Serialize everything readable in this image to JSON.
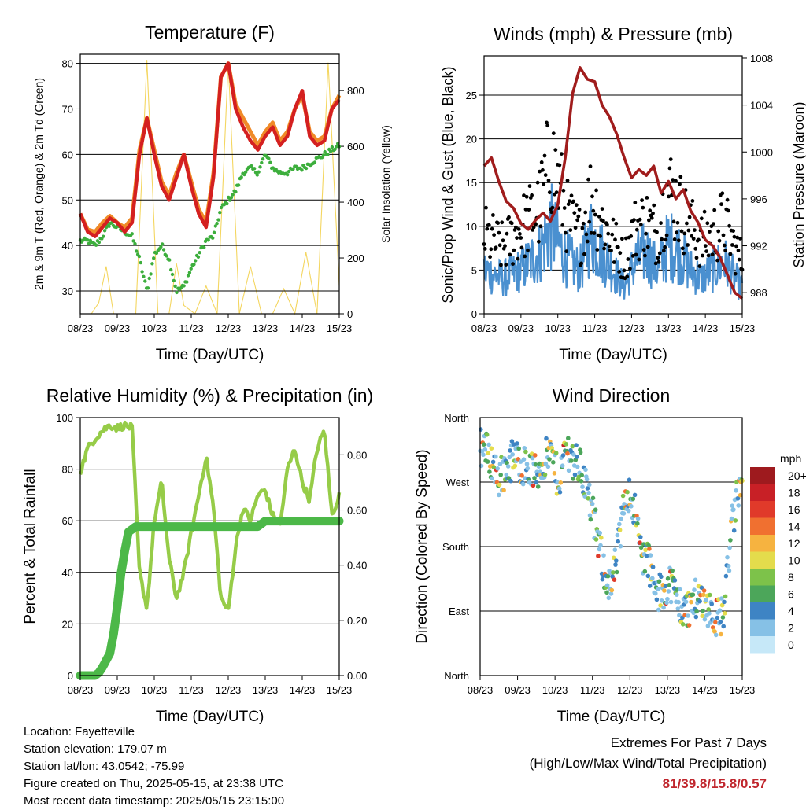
{
  "x_ticks": [
    "08/23",
    "09/23",
    "10/23",
    "11/23",
    "12/23",
    "13/23",
    "14/23",
    "15/23"
  ],
  "x_label": "Time (Day/UTC)",
  "panels": {
    "temperature": {
      "title": "Temperature (F)",
      "y_label": "2m & 9m T (Red, Orange) & 2m Td (Green)",
      "y2_label": "Solar Insolation (Yellow)",
      "y_ticks": [
        "30",
        "40",
        "50",
        "60",
        "70",
        "80"
      ],
      "y2_ticks": [
        "0",
        "200",
        "400",
        "600",
        "800"
      ]
    },
    "winds": {
      "title": "Winds (mph) & Pressure (mb)",
      "y_label": "Sonic/Prop Wind & Gust (Blue, Black)",
      "y2_label": "Station Pressure (Maroon)",
      "y_ticks": [
        "0",
        "5",
        "10",
        "15",
        "20",
        "25"
      ],
      "y2_ticks": [
        "988",
        "992",
        "996",
        "1000",
        "1004",
        "1008"
      ]
    },
    "humidity": {
      "title": "Relative Humidity (%) & Precipitation (in)",
      "y_label": "Percent & Total Rainfall",
      "y_ticks": [
        "0",
        "20",
        "40",
        "60",
        "80",
        "100"
      ],
      "y2_ticks": [
        "0.00",
        "0.20",
        "0.40",
        "0.60",
        "0.80"
      ]
    },
    "direction": {
      "title": "Wind Direction",
      "y_label": "Direction (Colored By Speed)",
      "y_ticks": [
        "North",
        "East",
        "South",
        "West",
        "North"
      ],
      "legend_title": "mph",
      "legend_labels": [
        "0",
        "2",
        "4",
        "6",
        "8",
        "10",
        "12",
        "14",
        "16",
        "18",
        "20+"
      ],
      "legend_colors": [
        "#c6e8f8",
        "#86c1e6",
        "#3e84c4",
        "#4ca65a",
        "#7dc24a",
        "#e4dc4c",
        "#f6b340",
        "#f07030",
        "#e03a2a",
        "#c82026",
        "#9e1a1e"
      ]
    }
  },
  "footer": {
    "location": "Location: Fayetteville",
    "elevation": "Station elevation: 179.07 m",
    "latlon": "Station lat/lon: 43.0542; -75.99",
    "created": "Figure created on Thu, 2025-05-15, at 23:38 UTC",
    "recent": "Most recent data timestamp: 2025/05/15 23:15:00"
  },
  "extremes": {
    "line1": "Extremes For Past 7 Days",
    "line2": "(High/Low/Max Wind/Total Precipitation)",
    "values": "81/39.8/15.8/0.57"
  },
  "colors": {
    "temp_2m": "#d42020",
    "temp_9m": "#f08a28",
    "dewpoint": "#3cae3c",
    "solar": "#f4d660",
    "wind": "#4a90d0",
    "gust": "#000000",
    "pressure": "#a01c1c",
    "humidity": "#96cc48",
    "precip": "#4cb848"
  },
  "chart_data": [
    {
      "type": "line",
      "title": "Temperature (F)",
      "xlabel": "Time (Day/UTC)",
      "ylabel": "2m & 9m T (Red, Orange) & 2m Td (Green)",
      "y2label": "Solar Insolation (Yellow)",
      "xlim": [
        0,
        7
      ],
      "ylim": [
        25,
        82
      ],
      "y2lim": [
        0,
        930
      ],
      "series": [
        {
          "x": [
            0,
            0.2,
            0.4,
            0.6,
            0.8,
            1.0,
            1.2,
            1.4,
            1.6,
            1.8,
            2.0,
            2.2,
            2.4,
            2.6,
            2.8,
            3.0,
            3.2,
            3.4,
            3.6,
            3.8,
            4.0,
            4.2,
            4.4,
            4.6,
            4.8,
            5.0,
            5.2,
            5.4,
            5.6,
            5.8,
            6.0,
            6.2,
            6.4,
            6.6,
            6.8,
            7.0
          ],
          "y": [
            47,
            43,
            42,
            44,
            46,
            45,
            43,
            45,
            60,
            68,
            60,
            53,
            50,
            55,
            60,
            53,
            47,
            44,
            55,
            77,
            80,
            70,
            66,
            63,
            61,
            64,
            66,
            62,
            64,
            70,
            74,
            64,
            62,
            63,
            70,
            72
          ]
        },
        {
          "x": [
            0,
            0.2,
            0.4,
            0.6,
            0.8,
            1.0,
            1.2,
            1.4,
            1.6,
            1.8,
            2.0,
            2.2,
            2.4,
            2.6,
            2.8,
            3.0,
            3.2,
            3.4,
            3.6,
            3.8,
            4.0,
            4.2,
            4.4,
            4.6,
            4.8,
            5.0,
            5.2,
            5.4,
            5.6,
            5.8,
            6.0,
            6.2,
            6.4,
            6.6,
            6.8,
            7.0
          ],
          "y": [
            47,
            43.5,
            43,
            45,
            46.5,
            45,
            44,
            46,
            61,
            68,
            61,
            54,
            51,
            56,
            60,
            54,
            48,
            45,
            56,
            77,
            80,
            71,
            68,
            65,
            62,
            65,
            67,
            63,
            65,
            70,
            73,
            65,
            63,
            64,
            70,
            73
          ]
        },
        {
          "x": [
            0,
            0.2,
            0.4,
            0.6,
            0.8,
            1.0,
            1.2,
            1.4,
            1.6,
            1.8,
            2.0,
            2.2,
            2.4,
            2.6,
            2.8,
            3.0,
            3.2,
            3.4,
            3.6,
            3.8,
            4.0,
            4.2,
            4.4,
            4.6,
            4.8,
            5.0,
            5.2,
            5.4,
            5.6,
            5.8,
            6.0,
            6.2,
            6.4,
            6.6,
            6.8,
            7.0
          ],
          "y": [
            41,
            41,
            40,
            42,
            45,
            44,
            43,
            42,
            37,
            30,
            38,
            40,
            37,
            30,
            31,
            35,
            38,
            41,
            42,
            48,
            50,
            52,
            56,
            57,
            56,
            60,
            57,
            56,
            56,
            57,
            57,
            58,
            59,
            60,
            61,
            62
          ]
        },
        {
          "x": [
            0,
            0.3,
            0.5,
            0.7,
            0.9,
            1.2,
            1.5,
            1.8,
            2.1,
            2.4,
            2.6,
            2.8,
            3.1,
            3.4,
            3.7,
            4.0,
            4.3,
            4.6,
            4.9,
            5.2,
            5.5,
            5.8,
            6.1,
            6.4,
            6.7,
            7.0
          ],
          "y": [
            0,
            0,
            40,
            170,
            0,
            0,
            0,
            910,
            0,
            0,
            180,
            30,
            0,
            100,
            0,
            900,
            0,
            170,
            0,
            0,
            90,
            0,
            220,
            0,
            900,
            100
          ]
        }
      ]
    },
    {
      "type": "scatter",
      "title": "Winds (mph) & Pressure (mb)",
      "xlabel": "Time (Day/UTC)",
      "ylabel": "Sonic/Prop Wind & Gust (Blue, Black)",
      "y2label": "Station Pressure (Maroon)",
      "xlim": [
        0,
        7
      ],
      "ylim": [
        0,
        29.5
      ],
      "y2lim": [
        986.2,
        1008.2
      ],
      "series": [
        {
          "x": [
            0,
            0.5,
            1.0,
            1.5,
            1.8,
            2.0,
            2.3,
            2.6,
            2.9,
            3.2,
            3.5,
            3.8,
            4.1,
            4.4,
            4.7,
            5.0,
            5.3,
            5.6,
            5.9,
            6.2,
            6.5,
            6.8,
            7.0
          ],
          "y": [
            5,
            4,
            5,
            7,
            10,
            8,
            6,
            5,
            9,
            7,
            5,
            3,
            6,
            7,
            5,
            8,
            7,
            5,
            4,
            5,
            6,
            4,
            3
          ]
        },
        {
          "x": [
            0,
            0.5,
            1.0,
            1.5,
            1.8,
            2.0,
            2.3,
            2.6,
            2.9,
            3.2,
            3.5,
            3.8,
            4.1,
            4.4,
            4.7,
            5.0,
            5.3,
            5.6,
            5.9,
            6.2,
            6.5,
            6.8,
            7.0
          ],
          "y": [
            12,
            10,
            13,
            16,
            24,
            20,
            14,
            12,
            18,
            14,
            11,
            8,
            13,
            14,
            12,
            19,
            16,
            13,
            11,
            12,
            14,
            10,
            8
          ]
        },
        {
          "x": [
            0,
            0.2,
            0.4,
            0.6,
            0.8,
            1.0,
            1.2,
            1.4,
            1.6,
            1.8,
            2.0,
            2.2,
            2.4,
            2.6,
            2.8,
            3.0,
            3.2,
            3.4,
            3.6,
            3.8,
            4.0,
            4.2,
            4.4,
            4.6,
            4.8,
            5.0,
            5.2,
            5.4,
            5.6,
            5.8,
            6.0,
            6.2,
            6.4,
            6.6,
            6.8,
            7.0
          ],
          "y": [
            998.8,
            999.5,
            997.5,
            995.8,
            995.2,
            993.9,
            993.4,
            994.2,
            994.8,
            994.1,
            995.5,
            999.5,
            1005.0,
            1007.2,
            1006.2,
            1006.0,
            1004.0,
            1003.0,
            1001.5,
            999.5,
            997.8,
            998.5,
            998.0,
            998.8,
            996.5,
            997.5,
            996.0,
            996.8,
            995.0,
            994.0,
            992.5,
            992.0,
            991.0,
            989.5,
            988.0,
            987.5
          ]
        }
      ]
    },
    {
      "type": "line",
      "title": "Relative Humidity (%) & Precipitation (in)",
      "xlabel": "Time (Day/UTC)",
      "ylabel": "Percent & Total Rainfall",
      "xlim": [
        0,
        7
      ],
      "ylim": [
        0,
        100
      ],
      "y2lim": [
        0,
        0.935
      ],
      "series": [
        {
          "x": [
            0,
            0.2,
            0.4,
            0.6,
            0.8,
            1.0,
            1.2,
            1.4,
            1.6,
            1.8,
            2.0,
            2.2,
            2.4,
            2.6,
            2.8,
            3.0,
            3.2,
            3.4,
            3.6,
            3.8,
            4.0,
            4.2,
            4.4,
            4.6,
            4.8,
            5.0,
            5.2,
            5.4,
            5.6,
            5.8,
            6.0,
            6.2,
            6.4,
            6.6,
            6.8,
            7.0
          ],
          "y": [
            79,
            88,
            92,
            95,
            97,
            96,
            97,
            96,
            40,
            26,
            60,
            75,
            45,
            30,
            40,
            55,
            70,
            85,
            65,
            30,
            25,
            50,
            65,
            60,
            70,
            72,
            62,
            58,
            80,
            88,
            75,
            68,
            88,
            95,
            62,
            70
          ]
        },
        {
          "x": [
            0,
            0.4,
            0.5,
            0.6,
            0.8,
            0.9,
            1.0,
            1.1,
            1.2,
            1.3,
            1.5,
            2.0,
            3.0,
            4.0,
            4.8,
            5.0,
            6.0,
            7.0
          ],
          "y": [
            0,
            0,
            0.01,
            0.03,
            0.08,
            0.15,
            0.25,
            0.37,
            0.45,
            0.52,
            0.54,
            0.54,
            0.54,
            0.54,
            0.54,
            0.56,
            0.56,
            0.56
          ]
        }
      ]
    },
    {
      "type": "scatter",
      "title": "Wind Direction",
      "xlabel": "Time (Day/UTC)",
      "ylabel": "Direction (Colored By Speed)",
      "xlim": [
        0,
        7
      ],
      "ylim": [
        0,
        360
      ],
      "yticks": [
        "North",
        "East",
        "South",
        "West",
        "North"
      ],
      "legend": {
        "title": "mph",
        "labels": [
          "0",
          "2",
          "4",
          "6",
          "8",
          "10",
          "12",
          "14",
          "16",
          "18",
          "20+"
        ]
      },
      "series": [
        {
          "x": [
            0.1,
            0.3,
            0.5,
            0.7,
            0.9,
            1.1,
            1.3,
            1.5,
            1.7,
            1.9,
            2.1,
            2.3,
            2.5,
            2.7,
            2.9,
            3.1,
            3.3,
            3.5,
            3.7,
            3.9,
            4.1,
            4.3,
            4.5,
            4.7,
            4.9,
            5.1,
            5.3,
            5.5,
            5.7,
            5.9,
            6.1,
            6.3,
            6.5,
            6.7,
            6.9
          ],
          "y": [
            320,
            300,
            275,
            290,
            305,
            295,
            290,
            280,
            300,
            310,
            270,
            320,
            300,
            290,
            250,
            200,
            150,
            120,
            180,
            260,
            240,
            170,
            160,
            110,
            120,
            130,
            100,
            90,
            105,
            110,
            95,
            80,
            85,
            200,
            260
          ]
        }
      ]
    }
  ]
}
